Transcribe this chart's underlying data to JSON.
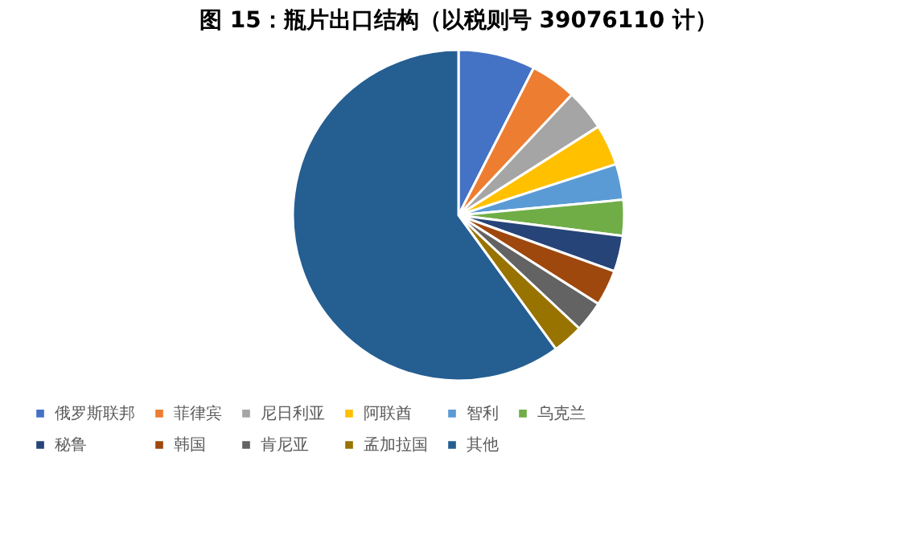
{
  "chart_data": {
    "type": "pie",
    "title": "图 15：瓶片出口结构（以税则号 39076110 计）",
    "categories": [
      "俄罗斯联邦",
      "菲律宾",
      "尼日利亚",
      "阿联酋",
      "智利",
      "乌克兰",
      "秘鲁",
      "韩国",
      "肯尼亚",
      "孟加拉国",
      "其他"
    ],
    "values": [
      7.5,
      4.5,
      4,
      4,
      3.5,
      3.5,
      3.5,
      3.5,
      3,
      3,
      60
    ],
    "colors": [
      "#4472c4",
      "#ed7d31",
      "#a5a5a5",
      "#ffc000",
      "#5b9bd5",
      "#70ad47",
      "#264478",
      "#9e480e",
      "#636363",
      "#997300",
      "#255e91"
    ],
    "legend": "bottom"
  }
}
